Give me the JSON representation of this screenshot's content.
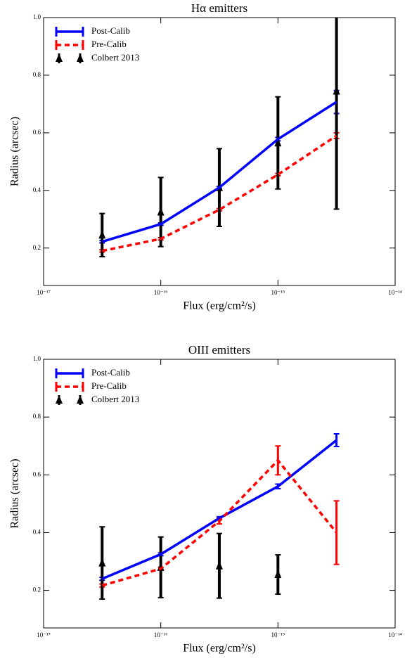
{
  "chart_data": [
    {
      "type": "line",
      "title": "Hα emitters",
      "xlabel": "Flux (erg/cm²/s)",
      "ylabel": "Radius (arcsec)",
      "xscale": "log",
      "legend": "upper left",
      "x": [
        3.16e-17,
        1e-16,
        3.16e-16,
        1e-15,
        3.16e-15
      ],
      "xlim": [
        1e-17,
        1e-14
      ],
      "xticks": [
        {
          "value": 1e-17,
          "label": "10⁻¹⁷"
        },
        {
          "value": 1e-16,
          "label": "10⁻¹⁶"
        },
        {
          "value": 1e-15,
          "label": "10⁻¹⁵"
        },
        {
          "value": 1e-14,
          "label": "10⁻¹⁴"
        }
      ],
      "ylim": [
        0.07,
        1.0
      ],
      "yticks": [
        0.2,
        0.4,
        0.6,
        0.8,
        {
          "value": 1,
          "label": "1.0"
        }
      ],
      "series": [
        {
          "name": "Post-Calib",
          "color": "#0000ff",
          "style": "solid",
          "values": [
            0.222,
            0.283,
            0.41,
            0.578,
            0.707
          ],
          "errors": [
            0.004,
            0.004,
            0.004,
            0.006,
            0.04
          ]
        },
        {
          "name": "Pre-Calib",
          "color": "#ff0000",
          "style": "dashed",
          "values": [
            0.19,
            0.232,
            0.333,
            0.455,
            0.59
          ],
          "errors": [
            0.004,
            0.004,
            0.004,
            0.004,
            0.01
          ]
        },
        {
          "name": "Colbert 2013",
          "color": "#000000",
          "style": "markers",
          "values": [
            0.245,
            0.325,
            0.41,
            0.565,
            0.745
          ],
          "errors": [
            0.075,
            0.12,
            0.135,
            0.16,
            0.41
          ]
        }
      ]
    },
    {
      "type": "line",
      "title": "OIII emitters",
      "xlabel": "Flux (erg/cm²/s)",
      "ylabel": "Radius (arcsec)",
      "xscale": "log",
      "legend": "upper left",
      "x": [
        3.16e-17,
        1e-16,
        3.16e-16,
        1e-15,
        3.16e-15
      ],
      "xlim": [
        1e-17,
        1e-14
      ],
      "xticks": [
        {
          "value": 1e-17,
          "label": "10⁻¹⁷"
        },
        {
          "value": 1e-16,
          "label": "10⁻¹⁶"
        },
        {
          "value": 1e-15,
          "label": "10⁻¹⁵"
        },
        {
          "value": 1e-14,
          "label": "10⁻¹⁴"
        }
      ],
      "ylim": [
        0.07,
        1.0
      ],
      "yticks": [
        0.2,
        0.4,
        0.6,
        0.8,
        {
          "value": 1,
          "label": "1.0"
        }
      ],
      "series": [
        {
          "name": "Post-Calib",
          "color": "#0000ff",
          "style": "solid",
          "values": [
            0.24,
            0.325,
            0.45,
            0.56,
            0.72
          ],
          "errors": [
            0.005,
            0.005,
            0.005,
            0.008,
            0.022
          ]
        },
        {
          "name": "Pre-Calib",
          "color": "#ff0000",
          "style": "dashed",
          "values": [
            0.217,
            0.275,
            0.44,
            0.65,
            0.4
          ],
          "errors": [
            0.005,
            0.005,
            0.01,
            0.05,
            0.11
          ]
        },
        {
          "name": "Colbert 2013",
          "color": "#000000",
          "style": "markers",
          "values": [
            0.295,
            0.28,
            0.285,
            0.255,
            null
          ],
          "errors": [
            0.125,
            0.105,
            0.112,
            0.068,
            null
          ]
        }
      ]
    }
  ]
}
